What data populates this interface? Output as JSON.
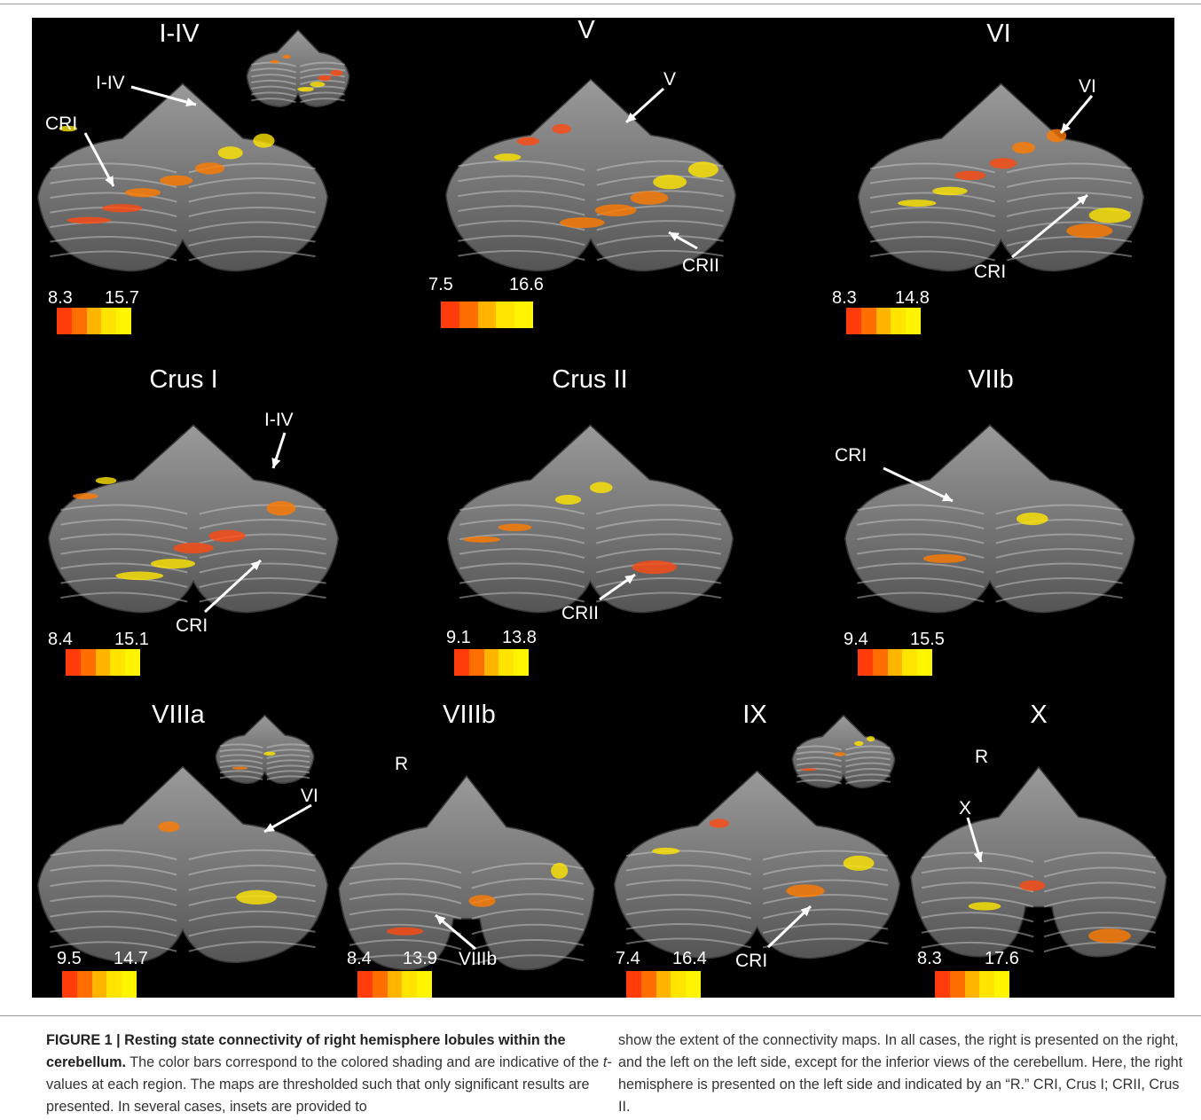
{
  "figure": {
    "panels": [
      {
        "title": "I-IV",
        "callouts": [
          "I-IV",
          "CRI"
        ],
        "range_low": "8.3",
        "range_high": "15.7"
      },
      {
        "title": "V",
        "callouts": [
          "V",
          "CRII"
        ],
        "range_low": "7.5",
        "range_high": "16.6"
      },
      {
        "title": "VI",
        "callouts": [
          "VI",
          "CRI"
        ],
        "range_low": "8.3",
        "range_high": "14.8"
      },
      {
        "title": "Crus I",
        "callouts": [
          "I-IV",
          "CRI"
        ],
        "range_low": "8.4",
        "range_high": "15.1"
      },
      {
        "title": "Crus II",
        "callouts": [
          "CRII"
        ],
        "range_low": "9.1",
        "range_high": "13.8"
      },
      {
        "title": "VIIb",
        "callouts": [
          "CRI"
        ],
        "range_low": "9.4",
        "range_high": "15.5"
      },
      {
        "title": "VIIIa",
        "callouts": [
          "VI"
        ],
        "range_low": "9.5",
        "range_high": "14.7"
      },
      {
        "title": "VIIIb",
        "callouts": [
          "R",
          "VIIIb"
        ],
        "range_low": "8.4",
        "range_high": "13.9"
      },
      {
        "title": "IX",
        "callouts": [
          "CRI"
        ],
        "range_low": "7.4",
        "range_high": "16.4"
      },
      {
        "title": "X",
        "callouts": [
          "R",
          "X"
        ],
        "range_low": "8.3",
        "range_high": "17.6"
      }
    ],
    "colorbar_colors": [
      "#ff3c0a",
      "#ff6e00",
      "#ffb400",
      "#ffe400",
      "#fff500"
    ]
  },
  "caption": {
    "label": "FIGURE 1 | Resting state connectivity of right hemisphere lobules within the cerebellum.",
    "text_part1": " The color bars correspond to the colored shading and are indicative of the ",
    "t_italic": "t",
    "text_part2": "-values at each region. The maps are thresholded such that only significant results are presented. In several cases, insets are provided to",
    "column2": "show the extent of the connectivity maps. In all cases, the right is presented on the right, and the left on the left side, except for the inferior views of the cerebellum. Here, the right hemisphere is presented on the left side and indicated by an “R.” CRI, Crus I; CRII, Crus II."
  }
}
